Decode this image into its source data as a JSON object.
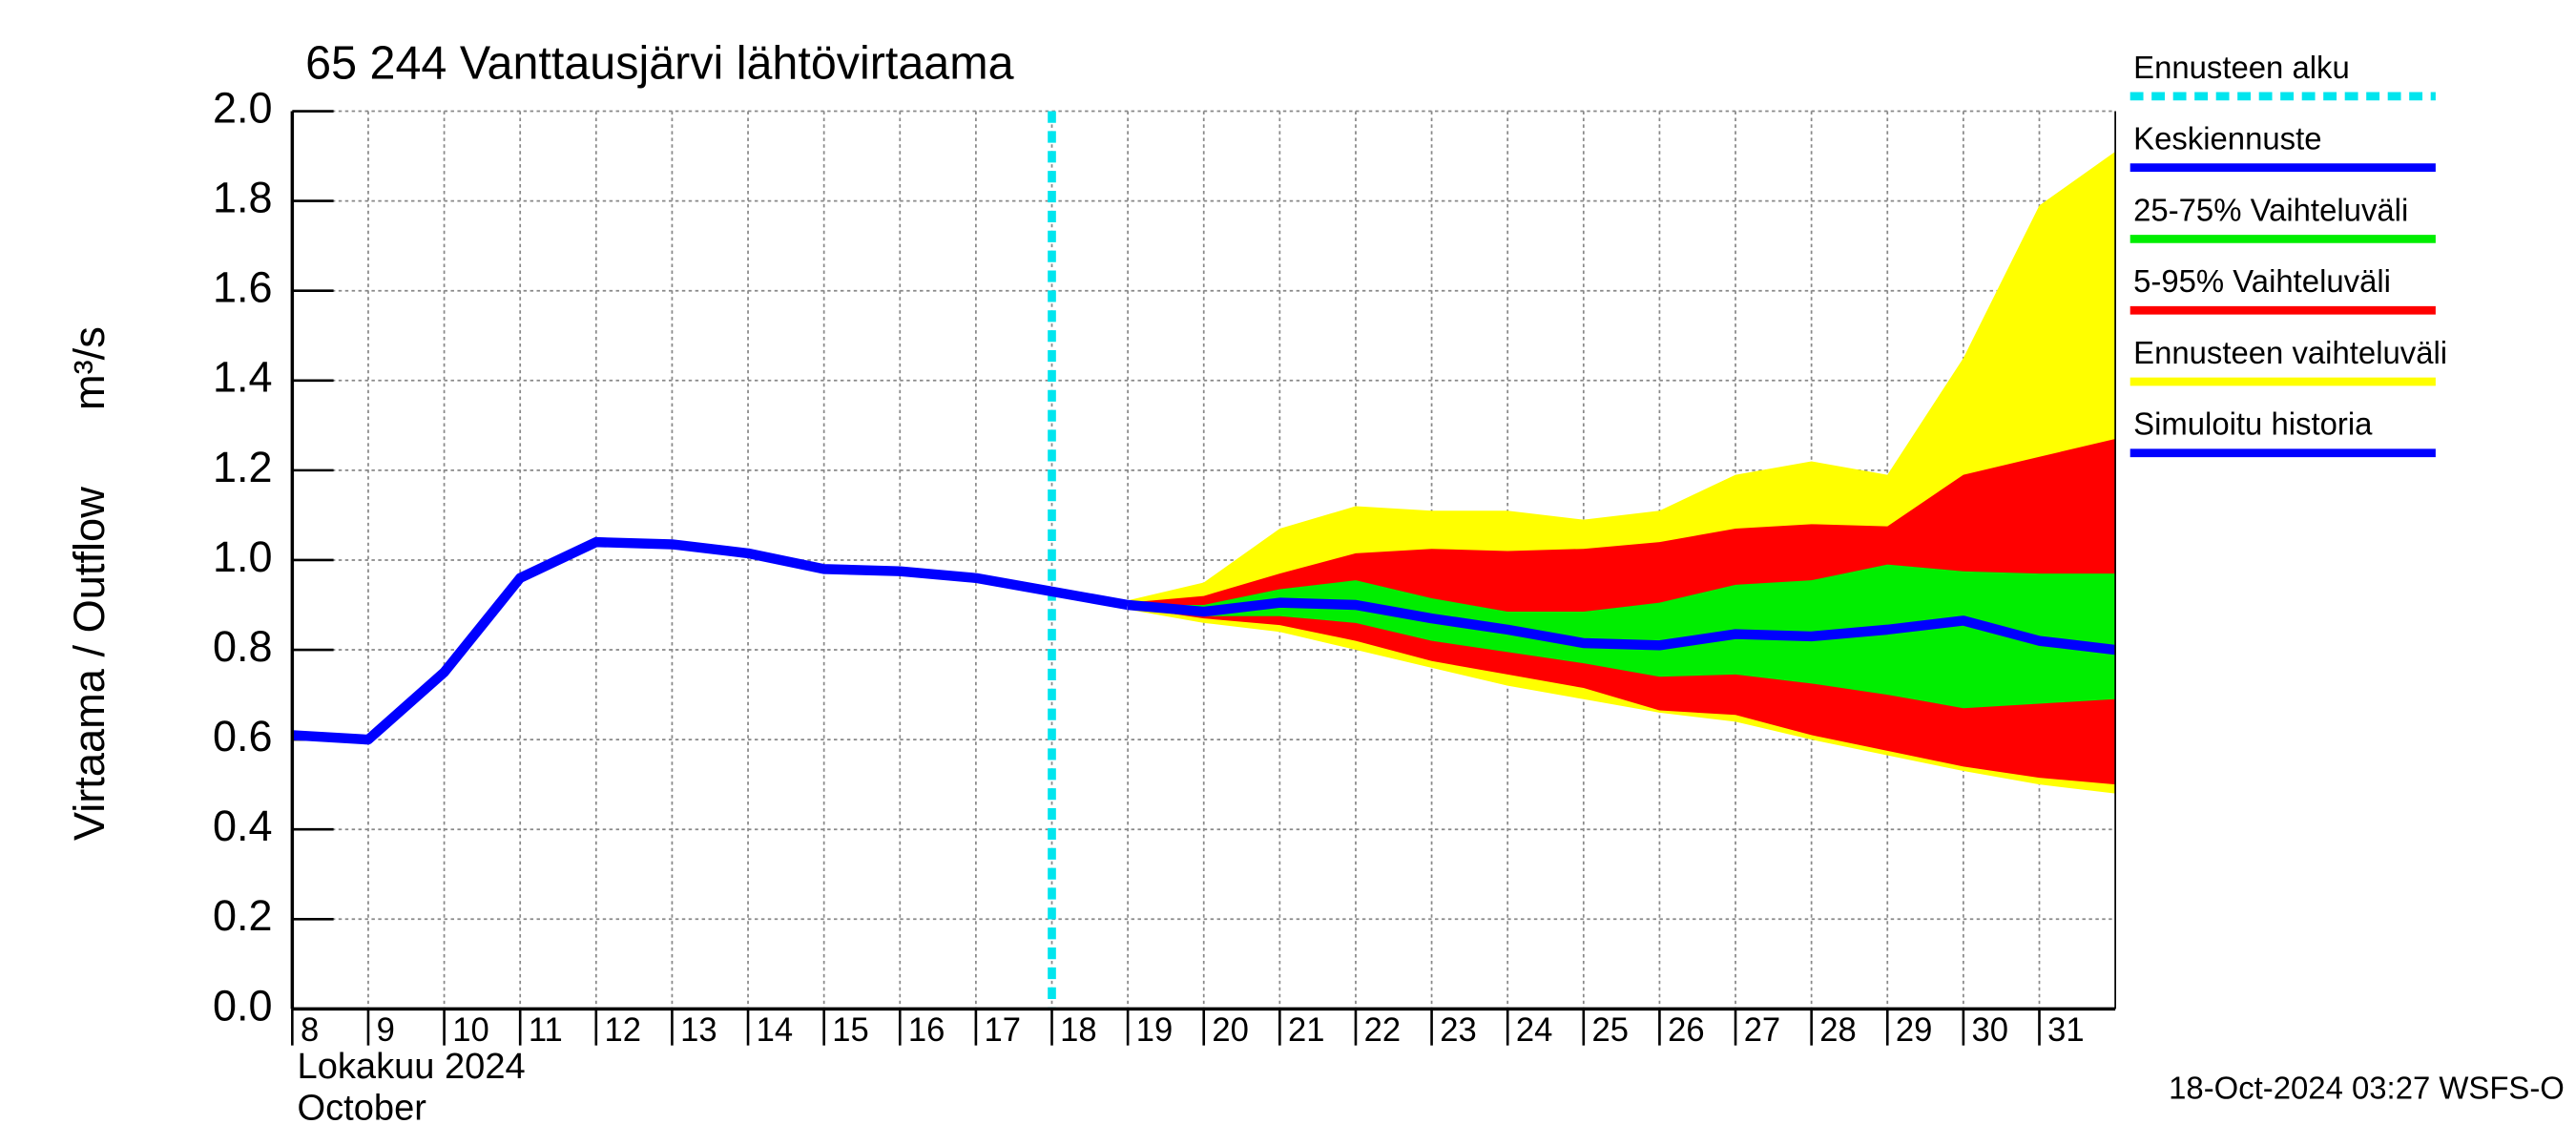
{
  "chart_data": {
    "type": "band-forecast",
    "title": "65 244 Vanttausjärvi lähtövirtaama",
    "ylabel": "Virtaama / Outflow",
    "yunit": "m³/s",
    "xlabel_fi": "Lokakuu  2024",
    "xlabel_en": "October",
    "footer": "18-Oct-2024 03:27 WSFS-O",
    "xlim": [
      8,
      32
    ],
    "xticks": [
      8,
      9,
      10,
      11,
      12,
      13,
      14,
      15,
      16,
      17,
      18,
      19,
      20,
      21,
      22,
      23,
      24,
      25,
      26,
      27,
      28,
      29,
      30,
      31
    ],
    "ylim": [
      0,
      2
    ],
    "yticks": [
      {
        "value": 0,
        "label": "0.0"
      },
      {
        "value": 0.2,
        "label": "0.2"
      },
      {
        "value": 0.4,
        "label": "0.4"
      },
      {
        "value": 0.6,
        "label": "0.6"
      },
      {
        "value": 0.8,
        "label": "0.8"
      },
      {
        "value": 1,
        "label": "1.0"
      },
      {
        "value": 1.2,
        "label": "1.2"
      },
      {
        "value": 1.4,
        "label": "1.4"
      },
      {
        "value": 1.6,
        "label": "1.6"
      },
      {
        "value": 1.8,
        "label": "1.8"
      },
      {
        "value": 2,
        "label": "2.0"
      }
    ],
    "grid": true,
    "x": [
      8,
      9,
      10,
      11,
      12,
      13,
      14,
      15,
      16,
      17,
      18,
      19,
      20,
      21,
      22,
      23,
      24,
      25,
      26,
      27,
      28,
      29,
      30,
      31,
      32
    ],
    "vlines": [
      {
        "name": "Ennusteen alku",
        "color": "#00e5ee",
        "x": 18
      }
    ],
    "series": [
      {
        "name": "Keskiennuste",
        "kind": "line",
        "color": "#0000ff",
        "values": [
          null,
          null,
          null,
          null,
          null,
          null,
          null,
          null,
          null,
          null,
          null,
          0.9,
          0.885,
          0.905,
          0.9,
          0.87,
          0.845,
          0.815,
          0.81,
          0.835,
          0.83,
          0.845,
          0.865,
          0.82,
          0.8
        ]
      },
      {
        "name": "25-75% Vaihteluväli",
        "kind": "band",
        "color": "#00ee00",
        "low": [
          null,
          null,
          null,
          null,
          null,
          null,
          null,
          null,
          null,
          null,
          null,
          0.9,
          0.875,
          0.875,
          0.86,
          0.82,
          0.795,
          0.77,
          0.74,
          0.745,
          0.725,
          0.7,
          0.67,
          0.68,
          0.69
        ],
        "values": [
          null,
          null,
          null,
          null,
          null,
          null,
          null,
          null,
          null,
          null,
          null,
          0.9,
          0.9,
          0.935,
          0.955,
          0.915,
          0.885,
          0.885,
          0.905,
          0.945,
          0.955,
          0.99,
          0.975,
          0.97,
          0.97
        ]
      },
      {
        "name": "5-95% Vaihteluväli",
        "kind": "band",
        "color": "#ff0000",
        "low": [
          null,
          null,
          null,
          null,
          null,
          null,
          null,
          null,
          null,
          null,
          null,
          0.895,
          0.87,
          0.855,
          0.82,
          0.775,
          0.745,
          0.715,
          0.665,
          0.655,
          0.61,
          0.575,
          0.54,
          0.515,
          0.5
        ],
        "values": [
          null,
          null,
          null,
          null,
          null,
          null,
          null,
          null,
          null,
          null,
          null,
          0.905,
          0.92,
          0.97,
          1.015,
          1.025,
          1.02,
          1.025,
          1.04,
          1.07,
          1.08,
          1.075,
          1.19,
          1.23,
          1.27
        ]
      },
      {
        "name": "Ennusteen vaihteluväli",
        "kind": "band",
        "color": "#ffff00",
        "low": [
          null,
          null,
          null,
          null,
          null,
          null,
          null,
          null,
          null,
          null,
          null,
          0.89,
          0.86,
          0.84,
          0.8,
          0.76,
          0.72,
          0.69,
          0.66,
          0.64,
          0.6,
          0.565,
          0.53,
          0.5,
          0.48
        ],
        "values": [
          null,
          null,
          null,
          null,
          null,
          null,
          null,
          null,
          null,
          null,
          null,
          0.91,
          0.95,
          1.07,
          1.12,
          1.11,
          1.11,
          1.09,
          1.11,
          1.19,
          1.22,
          1.19,
          1.45,
          1.79,
          1.91
        ]
      },
      {
        "name": "Simuloitu historia",
        "kind": "line",
        "color": "#0000ff",
        "values": [
          0.61,
          0.6,
          0.75,
          0.96,
          1.04,
          1.035,
          1.015,
          0.98,
          0.975,
          0.96,
          0.93,
          0.9,
          null,
          null,
          null,
          null,
          null,
          null,
          null,
          null,
          null,
          null,
          null,
          null,
          null
        ]
      }
    ]
  }
}
